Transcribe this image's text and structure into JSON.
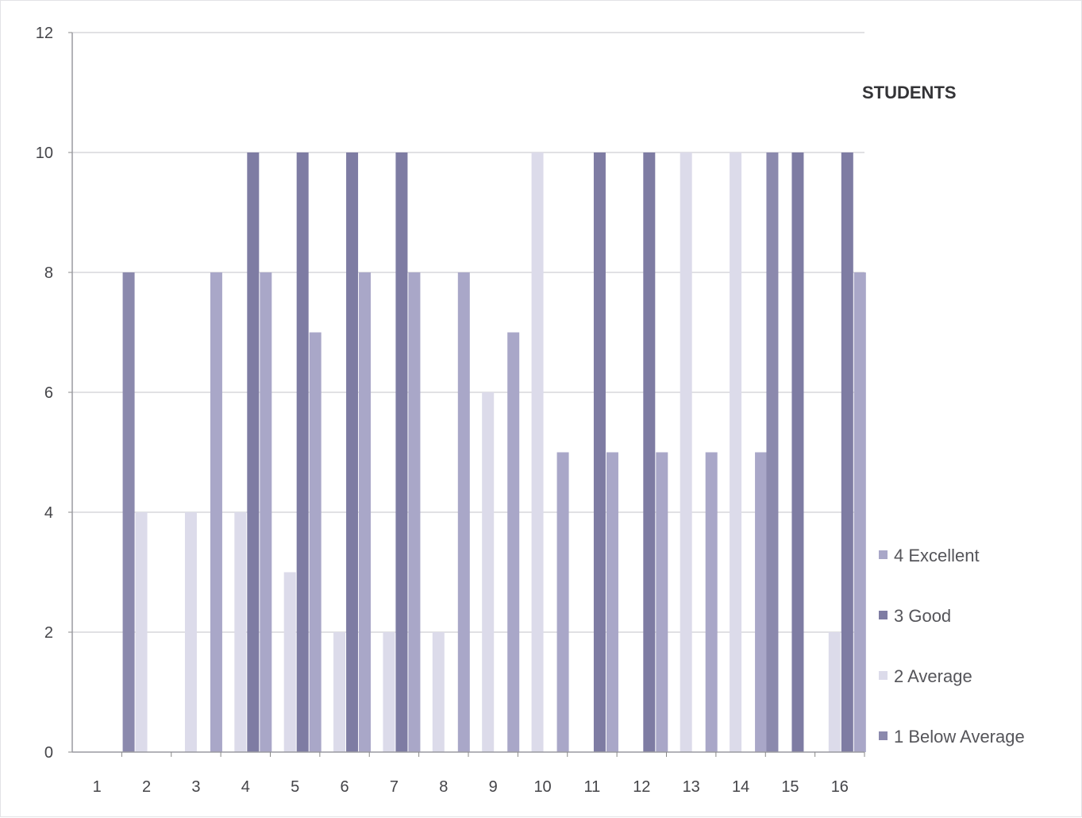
{
  "chart_data": {
    "type": "bar",
    "title": "",
    "xlabel": "",
    "ylabel": "",
    "legend_title": "STUDENTS",
    "legend_position": "right",
    "grid": true,
    "ylim": [
      0,
      12
    ],
    "yticks": [
      0,
      2,
      4,
      6,
      8,
      10,
      12
    ],
    "categories": [
      "1",
      "2",
      "3",
      "4",
      "5",
      "6",
      "7",
      "8",
      "9",
      "10",
      "11",
      "12",
      "13",
      "14",
      "15",
      "16"
    ],
    "series": [
      {
        "name": "1 Below Average",
        "color": "#8b89ad",
        "values": [
          0,
          8,
          0,
          0,
          0,
          0,
          0,
          0,
          0,
          0,
          0,
          0,
          0,
          0,
          10,
          0
        ]
      },
      {
        "name": "2 Average",
        "color": "#dcdbea",
        "values": [
          0,
          4,
          4,
          4,
          3,
          2,
          2,
          2,
          6,
          10,
          0,
          0,
          10,
          10,
          0,
          2
        ]
      },
      {
        "name": "3 Good",
        "color": "#7e7ca3",
        "values": [
          0,
          0,
          0,
          10,
          10,
          10,
          10,
          0,
          0,
          0,
          10,
          10,
          0,
          0,
          10,
          10
        ]
      },
      {
        "name": "4 Excellent",
        "color": "#a9a7c8",
        "values": [
          0,
          0,
          8,
          8,
          7,
          8,
          8,
          8,
          7,
          5,
          5,
          5,
          5,
          5,
          0,
          8
        ]
      }
    ]
  }
}
